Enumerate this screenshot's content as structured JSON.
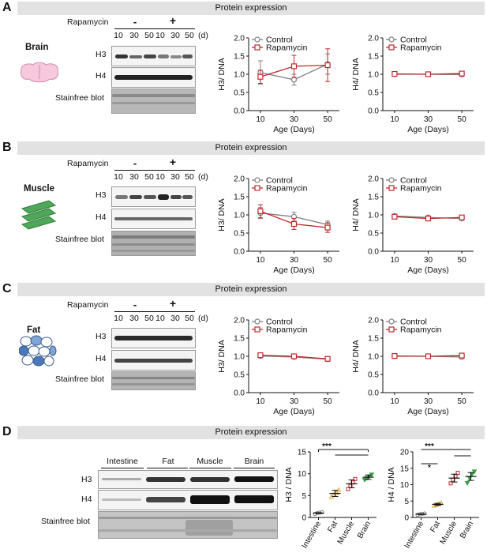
{
  "figure": {
    "rows": [
      {
        "letter": "A",
        "banner": "Protein expression",
        "tissue": "Brain",
        "treatment_label": "Rapamycin",
        "minus": "-",
        "plus": "+",
        "ages": [
          "10",
          "30",
          "50",
          "10",
          "30",
          "50"
        ],
        "age_unit": "(d)",
        "blots": [
          "H3",
          "H4",
          "Stainfree blot"
        ]
      },
      {
        "letter": "B",
        "banner": "Protein expression",
        "tissue": "Muscle",
        "treatment_label": "Rapamycin",
        "minus": "-",
        "plus": "+",
        "ages": [
          "10",
          "30",
          "50",
          "10",
          "30",
          "50"
        ],
        "age_unit": "(d)",
        "blots": [
          "H3",
          "H4",
          "Stainfree blot"
        ]
      },
      {
        "letter": "C",
        "banner": "Protein expression",
        "tissue": "Fat",
        "treatment_label": "Rapamycin",
        "minus": "-",
        "plus": "+",
        "ages": [
          "10",
          "30",
          "50",
          "10",
          "30",
          "50"
        ],
        "age_unit": "(d)",
        "blots": [
          "H3",
          "H4",
          "Stainfree blot"
        ]
      }
    ],
    "panel_d": {
      "letter": "D",
      "banner": "Protein expression",
      "tissues": [
        "Intestine",
        "Fat",
        "Muscle",
        "Brain"
      ],
      "blots": [
        "H3",
        "H4",
        "Stainfree blot"
      ]
    }
  },
  "chart_data": [
    {
      "id": "A-H3",
      "type": "line",
      "ylabel": "H3/ DNA",
      "xlabel": "Age (Days)",
      "x": [
        10,
        30,
        50
      ],
      "ylim": [
        0,
        2.0
      ],
      "yticks": [
        "0.0",
        "0.5",
        "1.0",
        "1.5",
        "2.0"
      ],
      "xticks": [
        "10",
        "30",
        "50"
      ],
      "legend": "top-left",
      "series": [
        {
          "name": "Control",
          "color": "#808080",
          "marker": "circle",
          "values": [
            1.05,
            0.85,
            1.28
          ],
          "err": [
            0.32,
            0.15,
            0.28
          ]
        },
        {
          "name": "Rapamycin",
          "color": "#c0282d",
          "marker": "square",
          "values": [
            0.93,
            1.22,
            1.25
          ],
          "err": [
            0.18,
            0.3,
            0.45
          ]
        }
      ]
    },
    {
      "id": "A-H4",
      "type": "line",
      "ylabel": "H4/ DNA",
      "xlabel": "Age (Days)",
      "x": [
        10,
        30,
        50
      ],
      "ylim": [
        0,
        2.0
      ],
      "yticks": [
        "0.0",
        "0.5",
        "1.0",
        "1.5",
        "2.0"
      ],
      "xticks": [
        "10",
        "30",
        "50"
      ],
      "legend": "top-left",
      "series": [
        {
          "name": "Control",
          "color": "#808080",
          "marker": "circle",
          "values": [
            1.0,
            1.0,
            0.99
          ],
          "err": [
            0.04,
            0.03,
            0.04
          ]
        },
        {
          "name": "Rapamycin",
          "color": "#c0282d",
          "marker": "square",
          "values": [
            1.01,
            1.0,
            1.02
          ],
          "err": [
            0.04,
            0.03,
            0.04
          ]
        }
      ]
    },
    {
      "id": "B-H3",
      "type": "line",
      "ylabel": "H3/ DNA",
      "xlabel": "Age (Days)",
      "x": [
        10,
        30,
        50
      ],
      "ylim": [
        0,
        2.0
      ],
      "yticks": [
        "0.0",
        "0.5",
        "1.0",
        "1.5",
        "2.0"
      ],
      "xticks": [
        "10",
        "30",
        "50"
      ],
      "legend": "top-left",
      "series": [
        {
          "name": "Control",
          "color": "#808080",
          "marker": "circle",
          "values": [
            1.05,
            0.95,
            0.73
          ],
          "err": [
            0.15,
            0.12,
            0.1
          ]
        },
        {
          "name": "Rapamycin",
          "color": "#c0282d",
          "marker": "square",
          "values": [
            1.1,
            0.75,
            0.65
          ],
          "err": [
            0.18,
            0.15,
            0.13
          ]
        }
      ]
    },
    {
      "id": "B-H4",
      "type": "line",
      "ylabel": "H4/ DNA",
      "xlabel": "Age (Days)",
      "x": [
        10,
        30,
        50
      ],
      "ylim": [
        0,
        2.0
      ],
      "yticks": [
        "0.0",
        "0.5",
        "1.0",
        "1.5",
        "2.0"
      ],
      "xticks": [
        "10",
        "30",
        "50"
      ],
      "legend": "top-left",
      "series": [
        {
          "name": "Control",
          "color": "#808080",
          "marker": "circle",
          "values": [
            0.97,
            0.93,
            0.9
          ],
          "err": [
            0.04,
            0.04,
            0.04
          ]
        },
        {
          "name": "Rapamycin",
          "color": "#c0282d",
          "marker": "square",
          "values": [
            0.95,
            0.9,
            0.93
          ],
          "err": [
            0.04,
            0.05,
            0.04
          ]
        }
      ]
    },
    {
      "id": "C-H3",
      "type": "line",
      "ylabel": "H3/ DNA",
      "xlabel": "Age (Days)",
      "x": [
        10,
        30,
        50
      ],
      "ylim": [
        0,
        2.0
      ],
      "yticks": [
        "0.0",
        "0.5",
        "1.0",
        "1.5",
        "2.0"
      ],
      "xticks": [
        "10",
        "30",
        "50"
      ],
      "legend": "top-left",
      "series": [
        {
          "name": "Control",
          "color": "#808080",
          "marker": "circle",
          "values": [
            1.01,
            0.98,
            0.92
          ],
          "err": [
            0.05,
            0.04,
            0.04
          ]
        },
        {
          "name": "Rapamycin",
          "color": "#c0282d",
          "marker": "square",
          "values": [
            1.03,
            1.0,
            0.93
          ],
          "err": [
            0.05,
            0.04,
            0.04
          ]
        }
      ]
    },
    {
      "id": "C-H4",
      "type": "line",
      "ylabel": "H4/ DNA",
      "xlabel": "Age (Days)",
      "x": [
        10,
        30,
        50
      ],
      "ylim": [
        0,
        2.0
      ],
      "yticks": [
        "0.0",
        "0.5",
        "1.0",
        "1.5",
        "2.0"
      ],
      "xticks": [
        "10",
        "30",
        "50"
      ],
      "legend": "top-left",
      "series": [
        {
          "name": "Control",
          "color": "#808080",
          "marker": "circle",
          "values": [
            1.0,
            1.0,
            0.98
          ],
          "err": [
            0.05,
            0.04,
            0.04
          ]
        },
        {
          "name": "Rapamycin",
          "color": "#c0282d",
          "marker": "square",
          "values": [
            1.01,
            1.0,
            1.02
          ],
          "err": [
            0.05,
            0.04,
            0.04
          ]
        }
      ]
    },
    {
      "id": "D-H3",
      "type": "scatter",
      "ylabel": "H3 / DNA",
      "categories": [
        "Intestine",
        "Fat",
        "Muscle",
        "Brain"
      ],
      "ylim": [
        0,
        15
      ],
      "yticks": [
        "0",
        "5",
        "10",
        "15"
      ],
      "significance": "***",
      "colors": [
        "#808080",
        "#e0a63a",
        "#c0282d",
        "#3aa04a"
      ],
      "means": [
        1.0,
        5.5,
        7.7,
        9.2
      ],
      "sem": [
        0.1,
        0.7,
        0.9,
        0.5
      ],
      "points": [
        [
          0.8,
          1.0,
          1.1,
          1.2
        ],
        [
          4.7,
          5.2,
          5.7,
          6.3
        ],
        [
          6.5,
          7.2,
          8.0,
          8.8
        ],
        [
          8.6,
          9.0,
          9.4,
          9.8
        ]
      ]
    },
    {
      "id": "D-H4",
      "type": "scatter",
      "ylabel": "H4 / DNA",
      "categories": [
        "Intestine",
        "Fat",
        "Muscle",
        "Brain"
      ],
      "ylim": [
        0,
        20
      ],
      "yticks": [
        "0",
        "5",
        "10",
        "15",
        "20"
      ],
      "significance": [
        "*",
        "***"
      ],
      "colors": [
        "#808080",
        "#e0a63a",
        "#c0282d",
        "#3aa04a"
      ],
      "means": [
        1.0,
        4.0,
        12.0,
        12.5
      ],
      "sem": [
        0.1,
        0.3,
        1.2,
        1.2
      ],
      "points": [
        [
          0.8,
          1.0,
          1.1,
          1.2
        ],
        [
          3.6,
          3.9,
          4.2,
          4.4
        ],
        [
          10.4,
          11.5,
          12.6,
          13.6
        ],
        [
          10.5,
          12.0,
          13.2,
          14.0
        ]
      ]
    }
  ]
}
